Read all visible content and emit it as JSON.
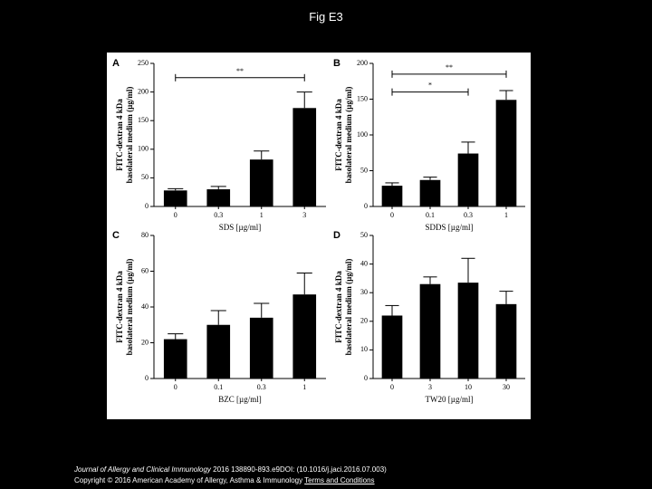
{
  "slide": {
    "title": "Fig E3"
  },
  "footer": {
    "journal": "Journal of Allergy and Clinical Immunology",
    "citation": " 2016 138890-893.e9DOI: (10.1016/j.jaci.2016.07.003)",
    "copyright": "Copyright © 2016 American Academy of Allergy, Asthma & Immunology ",
    "terms_link": "Terms and Conditions"
  },
  "colors": {
    "bar": "#000000",
    "background": "#000000",
    "figure_bg": "#ffffff"
  },
  "chart_data": [
    {
      "panel": "A",
      "type": "bar",
      "categories": [
        "0",
        "0.3",
        "1",
        "3"
      ],
      "values": [
        28,
        30,
        82,
        172
      ],
      "errors": [
        3,
        5,
        15,
        28
      ],
      "xlabel": "SDS [µg/ml]",
      "ylabel": [
        "FITC-dextran 4 kDa",
        "basolateral medium (µg/ml)"
      ],
      "ylim": [
        0,
        250
      ],
      "yticks": [
        "0",
        "50",
        "100",
        "150",
        "200",
        "250"
      ],
      "significance": [
        {
          "from": 0,
          "to": 3,
          "label": "**",
          "y": 225
        }
      ]
    },
    {
      "panel": "B",
      "type": "bar",
      "categories": [
        "0",
        "0.1",
        "0.3",
        "1"
      ],
      "values": [
        29,
        37,
        74,
        149
      ],
      "errors": [
        4,
        4,
        16,
        13
      ],
      "xlabel": "SDDS [µg/ml]",
      "ylabel": [
        "FITC-dextran 4 kDa",
        "basolateral medium (µg/ml)"
      ],
      "ylim": [
        0,
        200
      ],
      "yticks": [
        "0",
        "50",
        "100",
        "150",
        "200"
      ],
      "significance": [
        {
          "from": 0,
          "to": 3,
          "label": "**",
          "y": 185
        },
        {
          "from": 0,
          "to": 2,
          "label": "*",
          "y": 160
        }
      ]
    },
    {
      "panel": "C",
      "type": "bar",
      "categories": [
        "0",
        "0.1",
        "0.3",
        "1"
      ],
      "values": [
        22,
        30,
        34,
        47
      ],
      "errors": [
        3,
        8,
        8,
        12
      ],
      "xlabel": "BZC [µg/ml]",
      "ylabel": [
        "FITC-dextran 4 kDa",
        "basolateral medium (µg/ml)"
      ],
      "ylim": [
        0,
        80
      ],
      "yticks": [
        "0",
        "20",
        "40",
        "60",
        "80"
      ],
      "significance": []
    },
    {
      "panel": "D",
      "type": "bar",
      "categories": [
        "0",
        "3",
        "10",
        "30"
      ],
      "values": [
        22,
        33,
        33.5,
        26
      ],
      "errors": [
        3.5,
        2.5,
        8.5,
        4.5
      ],
      "xlabel": "TW20 [µg/ml]",
      "ylabel": [
        "FITC-dextran 4 kDa",
        "basolateral medium (µg/ml)"
      ],
      "ylim": [
        0,
        50
      ],
      "yticks": [
        "0",
        "10",
        "20",
        "30",
        "40",
        "50"
      ],
      "significance": []
    }
  ]
}
